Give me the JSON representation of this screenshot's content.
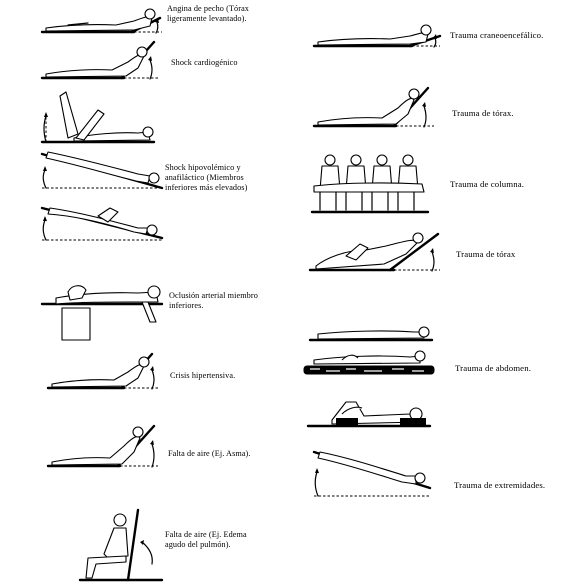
{
  "left_column": [
    {
      "key": "angina",
      "caption": "Angina de pecho (Tórax\nligeramente levantado)."
    },
    {
      "key": "shock_cardio",
      "caption": "Shock cardiogénico"
    },
    {
      "key": "shock_hipo",
      "caption": "Shock hipovolémico y\nanafiláctico (Miembros\ninferiores más elevados)"
    },
    {
      "key": "oclusion",
      "caption": "Oclusión arterial miembro\ninferiores."
    },
    {
      "key": "crisis",
      "caption": "Crisis hipertensiva."
    },
    {
      "key": "asma",
      "caption": "Falta de aire (Ej. Asma)."
    },
    {
      "key": "edema",
      "caption": "Falta de aire (Ej. Edema\nagudo del pulmón)."
    }
  ],
  "right_column": [
    {
      "key": "trauma_craneo",
      "caption": "Trauma craneoencefálico."
    },
    {
      "key": "trauma_torax_1",
      "caption": "Trauma de tórax."
    },
    {
      "key": "trauma_columna",
      "caption": "Trauma de columna."
    },
    {
      "key": "trauma_torax_2",
      "caption": "Trauma de tórax"
    },
    {
      "key": "trauma_abdomen",
      "caption": "Trauma de abdomen."
    },
    {
      "key": "trauma_extremidades",
      "caption": "Trauma de extremidades."
    }
  ]
}
